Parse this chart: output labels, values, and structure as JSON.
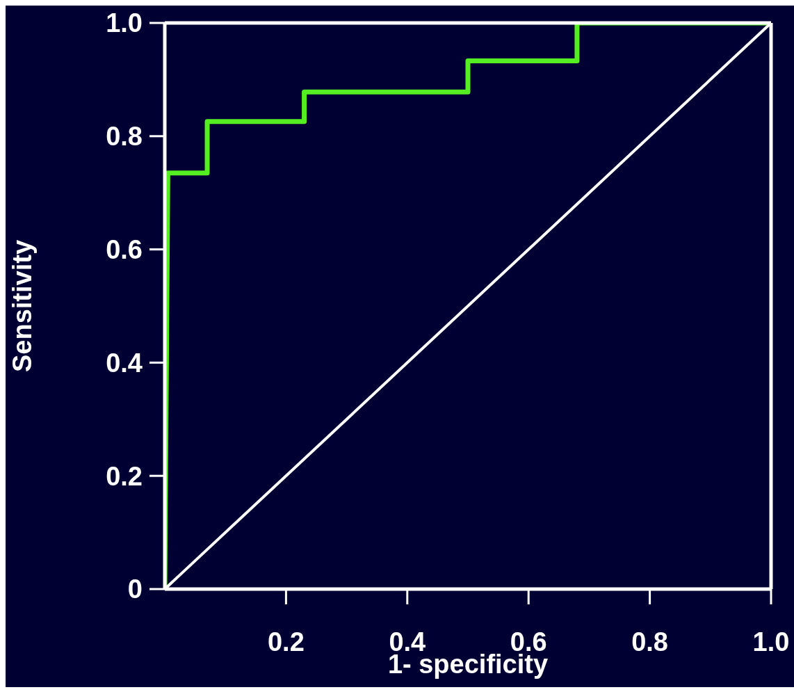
{
  "chart_data": {
    "type": "line",
    "xlabel": "1- specificity",
    "ylabel": "Sensitivity",
    "xlim": [
      0,
      1
    ],
    "ylim": [
      0,
      1
    ],
    "xticks": [
      {
        "value": 0.2,
        "label": "0.2"
      },
      {
        "value": 0.4,
        "label": "0.4"
      },
      {
        "value": 0.6,
        "label": "0.6"
      },
      {
        "value": 0.8,
        "label": "0.8"
      },
      {
        "value": 1,
        "label": "1.0"
      }
    ],
    "yticks": [
      0,
      {
        "value": 0.2,
        "label": "0.2"
      },
      {
        "value": 0.4,
        "label": "0.4"
      },
      {
        "value": 0.6,
        "label": "0.6"
      },
      {
        "value": 0.8,
        "label": "0.8"
      },
      {
        "value": 1,
        "label": "1.0"
      }
    ],
    "series": [
      {
        "color": "#55ee22",
        "x": [
          0,
          0.005,
          0.07,
          0.07,
          0.23,
          0.23,
          0.5,
          0.5,
          0.68,
          0.68,
          1
        ],
        "values": [
          0,
          0.735,
          0.735,
          0.826,
          0.826,
          0.878,
          0.878,
          0.933,
          0.933,
          1,
          1
        ]
      },
      {
        "color": "#ffffff",
        "x": [
          0,
          1
        ],
        "values": [
          0,
          1
        ]
      }
    ],
    "grid": false,
    "legend": false,
    "marker": "none",
    "line_style": "solid"
  }
}
